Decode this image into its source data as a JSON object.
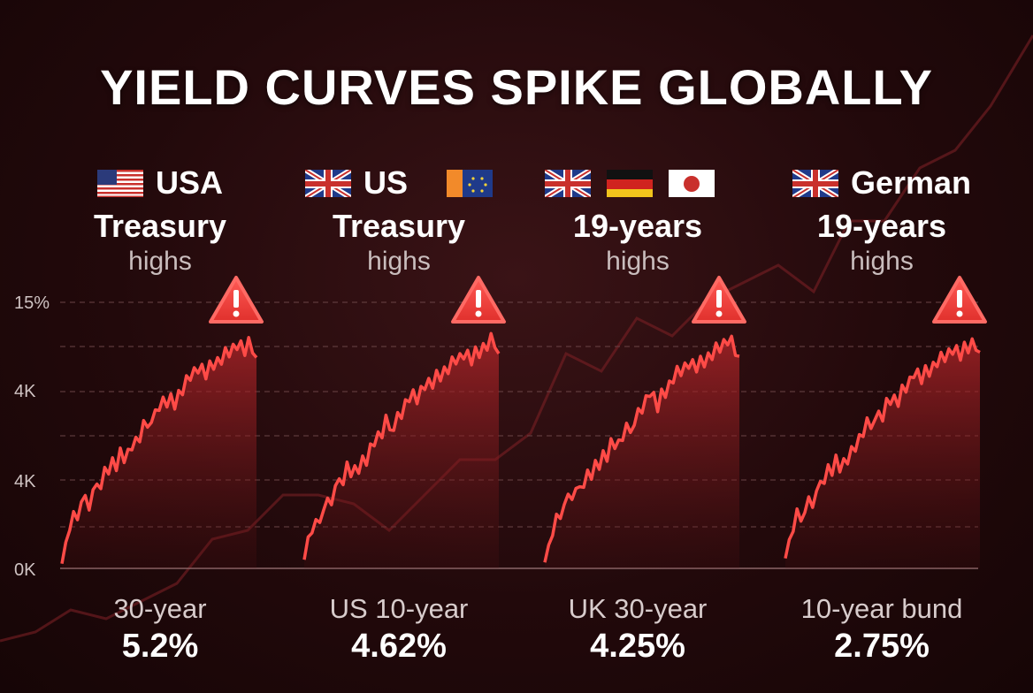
{
  "title": "YIELD CURVES SPIKE GLOBALLY",
  "y_ticks": [
    "15%",
    "4K",
    "4K",
    "0K"
  ],
  "panels": [
    {
      "flags": [
        "us-flag-icon"
      ],
      "flag_text": "USA",
      "headline": "Treasury",
      "sub": "highs",
      "label": "30-year",
      "value": "5.2%"
    },
    {
      "flags": [
        "uk-flag-icon",
        "ireland-eu-flag-icon"
      ],
      "flag_text": "US",
      "headline": "Treasury",
      "sub": "highs",
      "label": "US 10-year",
      "value": "4.62%"
    },
    {
      "flags": [
        "uk-flag-icon",
        "germany-flag-icon",
        "japan-flag-icon"
      ],
      "flag_text": "",
      "headline": "19-years",
      "sub": "highs",
      "label": "UK 30-year",
      "value": "4.25%"
    },
    {
      "flags": [
        "uk-flag-icon"
      ],
      "flag_text": "German",
      "headline": "19-years",
      "sub": "highs",
      "label": "10-year bund",
      "value": "2.75%"
    }
  ],
  "chart_data": {
    "type": "area",
    "title": "YIELD CURVES SPIKE GLOBALLY",
    "y_ticks": [
      "15%",
      "4K",
      "4K",
      "0K"
    ],
    "series_shape": [
      0.02,
      0.1,
      0.14,
      0.22,
      0.19,
      0.25,
      0.3,
      0.26,
      0.33,
      0.36,
      0.34,
      0.42,
      0.38,
      0.45,
      0.4,
      0.48,
      0.44,
      0.52,
      0.5,
      0.56,
      0.54,
      0.62,
      0.58,
      0.6,
      0.66,
      0.64,
      0.72,
      0.7,
      0.74,
      0.68,
      0.76,
      0.73,
      0.8,
      0.78,
      0.84,
      0.8,
      0.86,
      0.82,
      0.88,
      0.85,
      0.9,
      0.86,
      0.92,
      0.88,
      0.94,
      0.9,
      0.96,
      0.92,
      0.98,
      0.92,
      0.9
    ],
    "panels": [
      "30-year",
      "US 10-year",
      "UK 30-year",
      "10-year bund"
    ],
    "colors": {
      "line": "#ff4b47",
      "fill_top": "#b8262a",
      "grid": "#6a4446"
    }
  }
}
